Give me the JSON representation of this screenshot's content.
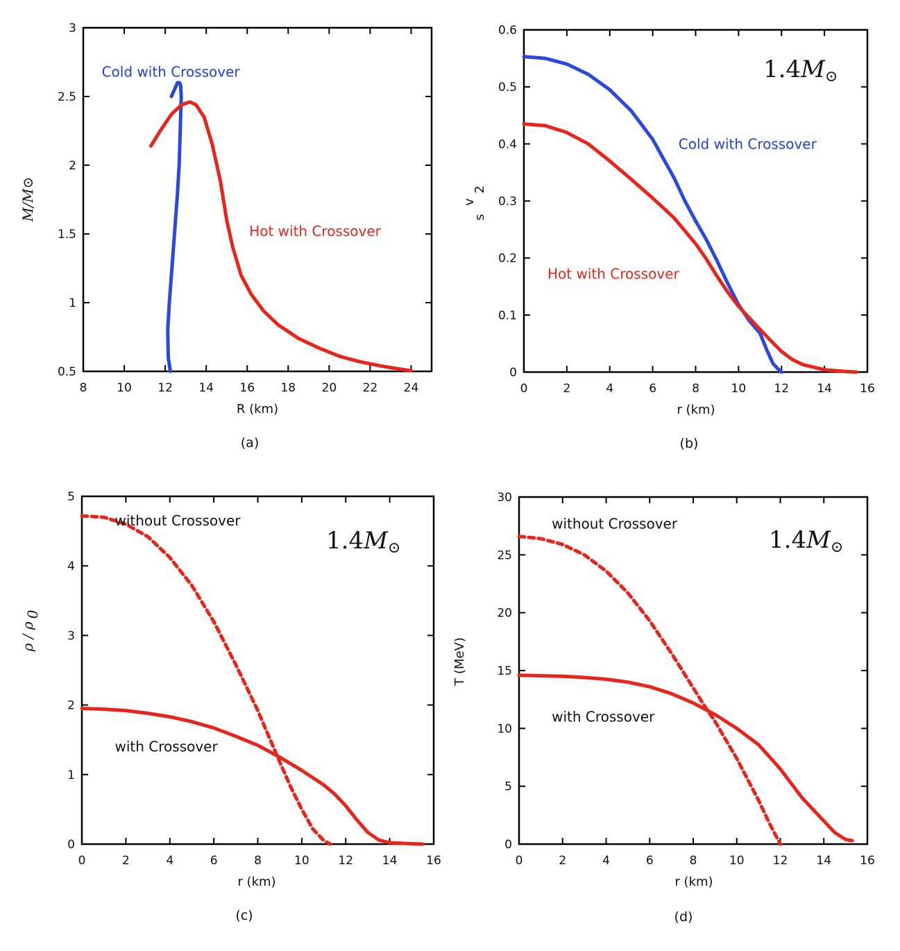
{
  "chart_data": [
    {
      "id": "a",
      "type": "line",
      "caption": "(a)",
      "xlabel": "R (km)",
      "ylabel": "M / M_⊙",
      "ylabel_display": "M/M⊙",
      "xlim": [
        8,
        25
      ],
      "ylim": [
        0.5,
        3
      ],
      "xticks": [
        8,
        10,
        12,
        14,
        16,
        18,
        20,
        22,
        24
      ],
      "yticks": [
        0.5,
        1,
        1.5,
        2,
        2.5,
        3
      ],
      "ytick_labels": [
        "0.5",
        "1",
        "1.5",
        "2",
        "2.5",
        "3"
      ],
      "annotations": [
        {
          "text": "Cold with Crossover",
          "color": "#1f3fe0",
          "x": 8.9,
          "y": 2.68
        },
        {
          "text": "Hot with Crossover",
          "color": "#e8241b",
          "x": 16.1,
          "y": 1.52
        }
      ],
      "series": [
        {
          "name": "Cold with Crossover",
          "color": "#2a48e0",
          "style": "solid",
          "x": [
            12.25,
            12.15,
            12.12,
            12.2,
            12.35,
            12.5,
            12.6,
            12.68,
            12.72,
            12.75,
            12.78,
            12.75,
            12.7,
            12.6,
            12.45,
            12.3
          ],
          "y": [
            0.5,
            0.6,
            0.8,
            1.0,
            1.3,
            1.6,
            1.8,
            2.0,
            2.2,
            2.35,
            2.5,
            2.58,
            2.6,
            2.6,
            2.55,
            2.5
          ]
        },
        {
          "name": "Hot with Crossover",
          "color": "#e8241b",
          "style": "solid",
          "x": [
            11.3,
            11.8,
            12.3,
            12.8,
            13.2,
            13.5,
            13.9,
            14.3,
            14.7,
            15.0,
            15.3,
            15.7,
            16.2,
            16.8,
            17.5,
            18.5,
            19.5,
            20.5,
            21.5,
            22.5,
            23.5,
            24.0
          ],
          "y": [
            2.14,
            2.26,
            2.37,
            2.44,
            2.46,
            2.44,
            2.35,
            2.15,
            1.88,
            1.6,
            1.4,
            1.2,
            1.06,
            0.94,
            0.84,
            0.74,
            0.67,
            0.61,
            0.57,
            0.54,
            0.515,
            0.505
          ]
        }
      ]
    },
    {
      "id": "b",
      "type": "line",
      "caption": "(b)",
      "xlabel": "r (km)",
      "ylabel": "v_s^2",
      "ylabel_base": "v",
      "ylabel_sub": "s",
      "ylabel_sup": "2",
      "xlim": [
        0,
        16
      ],
      "ylim": [
        0,
        0.6
      ],
      "xticks": [
        0,
        2,
        4,
        6,
        8,
        10,
        12,
        14,
        16
      ],
      "yticks": [
        0,
        0.1,
        0.2,
        0.3,
        0.4,
        0.5,
        0.6
      ],
      "ytick_labels": [
        "0",
        "0.1",
        "0.2",
        "0.3",
        "0.4",
        "0.5",
        "0.6"
      ],
      "mass_label": "1.4M⊙",
      "mass_base": "1.4",
      "mass_symbol": "M",
      "mass_sub": "⊙",
      "annotations": [
        {
          "text": "Cold with Crossover",
          "color": "#1f3fe0",
          "x": 7.2,
          "y": 0.4
        },
        {
          "text": "Hot with Crossover",
          "color": "#e8241b",
          "x": 1.1,
          "y": 0.172
        }
      ],
      "series": [
        {
          "name": "Cold with Crossover",
          "color": "#2a48e0",
          "style": "solid",
          "x": [
            0,
            1,
            2,
            3,
            4,
            5,
            6,
            7,
            7.5,
            8,
            8.5,
            9,
            9.5,
            10,
            10.5,
            11,
            11.3,
            11.6,
            11.9,
            12.0
          ],
          "y": [
            0.553,
            0.55,
            0.54,
            0.522,
            0.495,
            0.458,
            0.408,
            0.34,
            0.3,
            0.265,
            0.232,
            0.195,
            0.155,
            0.118,
            0.09,
            0.068,
            0.04,
            0.015,
            0.003,
            0
          ]
        },
        {
          "name": "Hot with Crossover",
          "color": "#e8241b",
          "style": "solid",
          "x": [
            0,
            1,
            2,
            3,
            4,
            5,
            6,
            7,
            8,
            8.5,
            9,
            9.5,
            10,
            10.5,
            11,
            11.5,
            12,
            12.5,
            13,
            14,
            15,
            15.5
          ],
          "y": [
            0.435,
            0.432,
            0.42,
            0.4,
            0.37,
            0.338,
            0.305,
            0.27,
            0.225,
            0.198,
            0.168,
            0.14,
            0.115,
            0.095,
            0.075,
            0.055,
            0.036,
            0.022,
            0.013,
            0.004,
            0.001,
            0
          ]
        }
      ]
    },
    {
      "id": "c",
      "type": "line",
      "caption": "(c)",
      "xlabel": "r (km)",
      "ylabel": "ρ / ρ_0",
      "ylabel_left": "ρ / ρ",
      "ylabel_sub": "0",
      "xlim": [
        0,
        16
      ],
      "ylim": [
        0,
        5
      ],
      "xticks": [
        0,
        2,
        4,
        6,
        8,
        10,
        12,
        14,
        16
      ],
      "yticks": [
        0,
        1,
        2,
        3,
        4,
        5
      ],
      "ytick_labels": [
        "0",
        "1",
        "2",
        "3",
        "4",
        "5"
      ],
      "mass_label": "1.4M⊙",
      "mass_base": "1.4",
      "mass_symbol": "M",
      "mass_sub": "⊙",
      "annotations": [
        {
          "text": "without Crossover",
          "color": "#111111",
          "x": 1.5,
          "y": 4.65
        },
        {
          "text": "with Crossover",
          "color": "#111111",
          "x": 1.5,
          "y": 1.4
        }
      ],
      "series": [
        {
          "name": "without Crossover",
          "color": "#e8241b",
          "style": "dashed",
          "x": [
            0,
            1,
            2,
            3,
            4,
            5,
            6,
            7,
            8,
            8.5,
            9,
            9.5,
            10,
            10.5,
            11,
            11.3
          ],
          "y": [
            4.72,
            4.7,
            4.6,
            4.42,
            4.12,
            3.72,
            3.2,
            2.58,
            1.92,
            1.55,
            1.18,
            0.82,
            0.5,
            0.22,
            0.05,
            0
          ]
        },
        {
          "name": "with Crossover",
          "color": "#e8241b",
          "style": "solid",
          "x": [
            0,
            1,
            2,
            3,
            4,
            5,
            6,
            7,
            8,
            9,
            10,
            11,
            11.5,
            12,
            12.5,
            13,
            13.5,
            14,
            15,
            15.5
          ],
          "y": [
            1.95,
            1.94,
            1.92,
            1.88,
            1.83,
            1.76,
            1.67,
            1.55,
            1.42,
            1.25,
            1.06,
            0.85,
            0.72,
            0.55,
            0.35,
            0.17,
            0.06,
            0.02,
            0.005,
            0
          ]
        }
      ]
    },
    {
      "id": "d",
      "type": "line",
      "caption": "(d)",
      "xlabel": "r (km)",
      "ylabel": "T (MeV)",
      "xlim": [
        0,
        16
      ],
      "ylim": [
        0,
        30
      ],
      "xticks": [
        0,
        2,
        4,
        6,
        8,
        10,
        12,
        14,
        16
      ],
      "yticks": [
        0,
        5,
        10,
        15,
        20,
        25,
        30
      ],
      "ytick_labels": [
        "0",
        "5",
        "10",
        "15",
        "20",
        "25",
        "30"
      ],
      "mass_label": "1.4M⊙",
      "mass_base": "1.4",
      "mass_symbol": "M",
      "mass_sub": "⊙",
      "annotations": [
        {
          "text": "without Crossover",
          "color": "#111111",
          "x": 1.5,
          "y": 27.7
        },
        {
          "text": "with Crossover",
          "color": "#111111",
          "x": 1.5,
          "y": 11.0
        }
      ],
      "series": [
        {
          "name": "without Crossover",
          "color": "#e8241b",
          "style": "dashed",
          "x": [
            0,
            1,
            2,
            3,
            4,
            5,
            6,
            7,
            8,
            8.5,
            9,
            9.5,
            10,
            10.5,
            11,
            11.5,
            12
          ],
          "y": [
            26.6,
            26.4,
            25.9,
            25.0,
            23.6,
            21.7,
            19.3,
            16.5,
            13.5,
            12.0,
            10.6,
            9.0,
            7.4,
            5.6,
            3.8,
            1.8,
            0
          ]
        },
        {
          "name": "with Crossover",
          "color": "#e8241b",
          "style": "solid",
          "x": [
            0,
            1,
            2,
            3,
            4,
            5,
            6,
            7,
            8,
            9,
            10,
            11,
            12,
            13,
            14,
            14.5,
            15,
            15.3
          ],
          "y": [
            14.6,
            14.55,
            14.5,
            14.4,
            14.25,
            14.0,
            13.6,
            13.0,
            12.2,
            11.2,
            10.0,
            8.6,
            6.5,
            4.0,
            2.0,
            1.0,
            0.4,
            0.3
          ]
        }
      ]
    }
  ]
}
